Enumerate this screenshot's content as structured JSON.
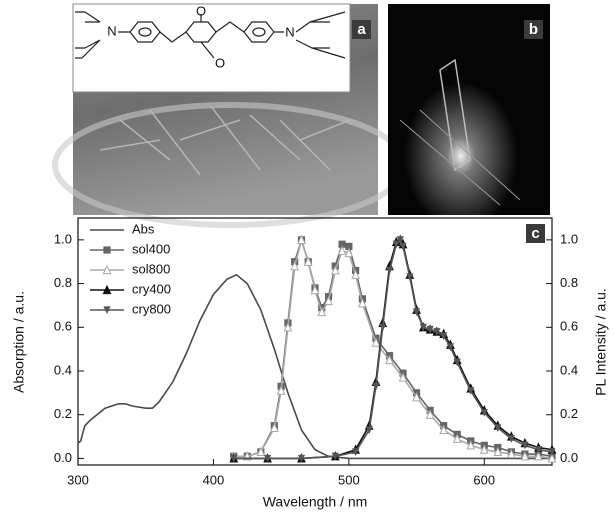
{
  "panels": {
    "a": {
      "label": "a",
      "atoms": [
        "N",
        "O",
        "O",
        "N"
      ]
    },
    "b": {
      "label": "b"
    }
  },
  "chart_data": {
    "type": "line",
    "panel_label": "c",
    "xlabel": "Wavelength / nm",
    "ylabel": "Absorption / a.u.",
    "y2label": "PL Intensity / a.u.",
    "xlim": [
      300,
      650
    ],
    "xticks": [
      300,
      400,
      500,
      600
    ],
    "ylim": [
      -0.03,
      1.1
    ],
    "yticks": [
      {
        "value": 0,
        "label": "0.0"
      },
      {
        "value": 0.2,
        "label": "0.2"
      },
      {
        "value": 0.4,
        "label": "0.4"
      },
      {
        "value": 0.6,
        "label": "0.6"
      },
      {
        "value": 0.8,
        "label": "0.8"
      },
      {
        "value": 1,
        "label": "1.0"
      }
    ],
    "y2lim": [
      -0.03,
      1.1
    ],
    "y2ticks": [
      {
        "value": 0,
        "label": "0.0"
      },
      {
        "value": 0.2,
        "label": "0.2"
      },
      {
        "value": 0.4,
        "label": "0.4"
      },
      {
        "value": 0.6,
        "label": "0.6"
      },
      {
        "value": 0.8,
        "label": "0.8"
      },
      {
        "value": 1,
        "label": "1.0"
      }
    ],
    "legend": "top-left",
    "series": [
      {
        "name": "Abs",
        "color": "#4a4a4a",
        "marker": "none",
        "x": [
          300,
          302,
          305,
          310,
          320,
          330,
          335,
          340,
          350,
          355,
          360,
          370,
          380,
          390,
          400,
          410,
          417,
          425,
          435,
          445,
          455,
          465,
          475,
          485,
          500,
          550,
          650
        ],
        "values": [
          0.07,
          0.08,
          0.15,
          0.18,
          0.23,
          0.25,
          0.25,
          0.24,
          0.23,
          0.23,
          0.26,
          0.35,
          0.48,
          0.63,
          0.75,
          0.82,
          0.84,
          0.8,
          0.68,
          0.5,
          0.3,
          0.13,
          0.04,
          0.01,
          0,
          0,
          0
        ]
      },
      {
        "name": "sol400",
        "color": "#666666",
        "marker": "square",
        "axis": "y2",
        "x": [
          415,
          425,
          435,
          445,
          450,
          455,
          460,
          465,
          470,
          475,
          480,
          485,
          490,
          495,
          500,
          505,
          510,
          520,
          530,
          540,
          550,
          560,
          570,
          580,
          590,
          600,
          610,
          620,
          630,
          640,
          650
        ],
        "values": [
          0.01,
          0.01,
          0.03,
          0.15,
          0.33,
          0.62,
          0.9,
          1.0,
          0.9,
          0.78,
          0.69,
          0.74,
          0.88,
          0.98,
          0.97,
          0.86,
          0.73,
          0.55,
          0.47,
          0.39,
          0.3,
          0.22,
          0.15,
          0.11,
          0.08,
          0.06,
          0.05,
          0.03,
          0.02,
          0.02,
          0.01
        ]
      },
      {
        "name": "sol800",
        "color": "#a8a8a8",
        "marker": "triangle-open",
        "axis": "y2",
        "x": [
          415,
          425,
          435,
          445,
          450,
          455,
          460,
          465,
          470,
          475,
          480,
          485,
          490,
          495,
          500,
          505,
          510,
          520,
          530,
          540,
          550,
          560,
          570,
          580,
          590,
          600,
          610,
          620,
          630,
          640,
          650
        ],
        "values": [
          0.01,
          0.01,
          0.03,
          0.14,
          0.31,
          0.6,
          0.88,
          1.0,
          0.9,
          0.77,
          0.67,
          0.72,
          0.86,
          0.95,
          0.94,
          0.84,
          0.71,
          0.53,
          0.45,
          0.37,
          0.28,
          0.2,
          0.13,
          0.09,
          0.06,
          0.04,
          0.03,
          0.02,
          0.01,
          0.01,
          0
        ]
      },
      {
        "name": "cry400",
        "color": "#111111",
        "marker": "triangle",
        "axis": "y2",
        "x": [
          415,
          440,
          465,
          490,
          505,
          515,
          520,
          525,
          530,
          535,
          538,
          540,
          545,
          550,
          555,
          560,
          565,
          570,
          575,
          580,
          590,
          600,
          610,
          620,
          630,
          640,
          650
        ],
        "values": [
          0,
          0,
          0,
          0.01,
          0.04,
          0.15,
          0.35,
          0.62,
          0.88,
          0.99,
          1.0,
          0.98,
          0.84,
          0.68,
          0.6,
          0.59,
          0.58,
          0.57,
          0.52,
          0.45,
          0.32,
          0.22,
          0.15,
          0.1,
          0.07,
          0.05,
          0.04
        ]
      },
      {
        "name": "cry800",
        "color": "#555555",
        "marker": "triangle-down",
        "axis": "y2",
        "x": [
          415,
          440,
          465,
          490,
          505,
          515,
          520,
          525,
          530,
          535,
          538,
          540,
          545,
          550,
          555,
          560,
          565,
          570,
          575,
          580,
          590,
          600,
          610,
          620,
          630,
          640,
          650
        ],
        "values": [
          0,
          0,
          0,
          0.01,
          0.03,
          0.13,
          0.33,
          0.6,
          0.86,
          0.98,
          1.0,
          0.97,
          0.83,
          0.67,
          0.6,
          0.59,
          0.58,
          0.56,
          0.51,
          0.44,
          0.31,
          0.21,
          0.14,
          0.09,
          0.06,
          0.04,
          0.03
        ]
      }
    ]
  }
}
